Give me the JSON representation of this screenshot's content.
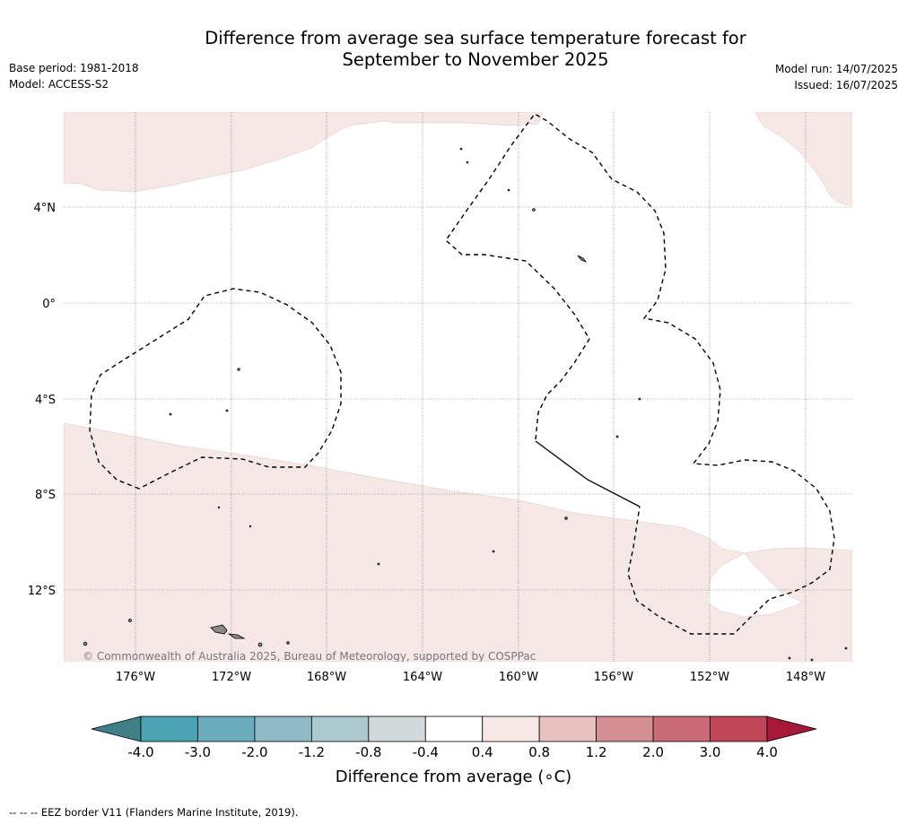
{
  "title": {
    "line1": "Difference from average sea surface temperature forecast for",
    "line2": "September to November 2025"
  },
  "meta": {
    "base_period": "Base period: 1981-2018",
    "model": "Model: ACCESS-S2",
    "model_run": "Model run: 14/07/2025",
    "issued": "Issued: 16/07/2025"
  },
  "map": {
    "latitude_labels": [
      "4°N",
      "0°",
      "4°S",
      "8°S",
      "12°S"
    ],
    "longitude_labels": [
      "176°W",
      "172°W",
      "168°W",
      "164°W",
      "160°W",
      "156°W",
      "152°W",
      "148°W"
    ],
    "copyright": "© Commonwealth of Australia 2025, Bureau of Meteorology, supported by COSPPac",
    "colors": {
      "anomaly_0_4_to_0_8": "#f5e8e7",
      "land": "#8a8a8a"
    }
  },
  "colorbar": {
    "title": "Difference from average (∘C)",
    "tick_labels": [
      "-4.0",
      "-3.0",
      "-2.0",
      "-1.2",
      "-0.8",
      "-0.4",
      "0.4",
      "0.8",
      "1.2",
      "2.0",
      "3.0",
      "4.0"
    ],
    "colors": [
      "#3f7f88",
      "#4aa2b3",
      "#6aadbd",
      "#8fbac5",
      "#aac8cd",
      "#d3d9db",
      "#ffffff",
      "#f5e8e7",
      "#e7c2bf",
      "#d48f95",
      "#c96a76",
      "#bf4657",
      "#a8183a"
    ]
  },
  "footnote": "--  --  -- EEZ border V11 (Flanders Marine Institute, 2019)."
}
